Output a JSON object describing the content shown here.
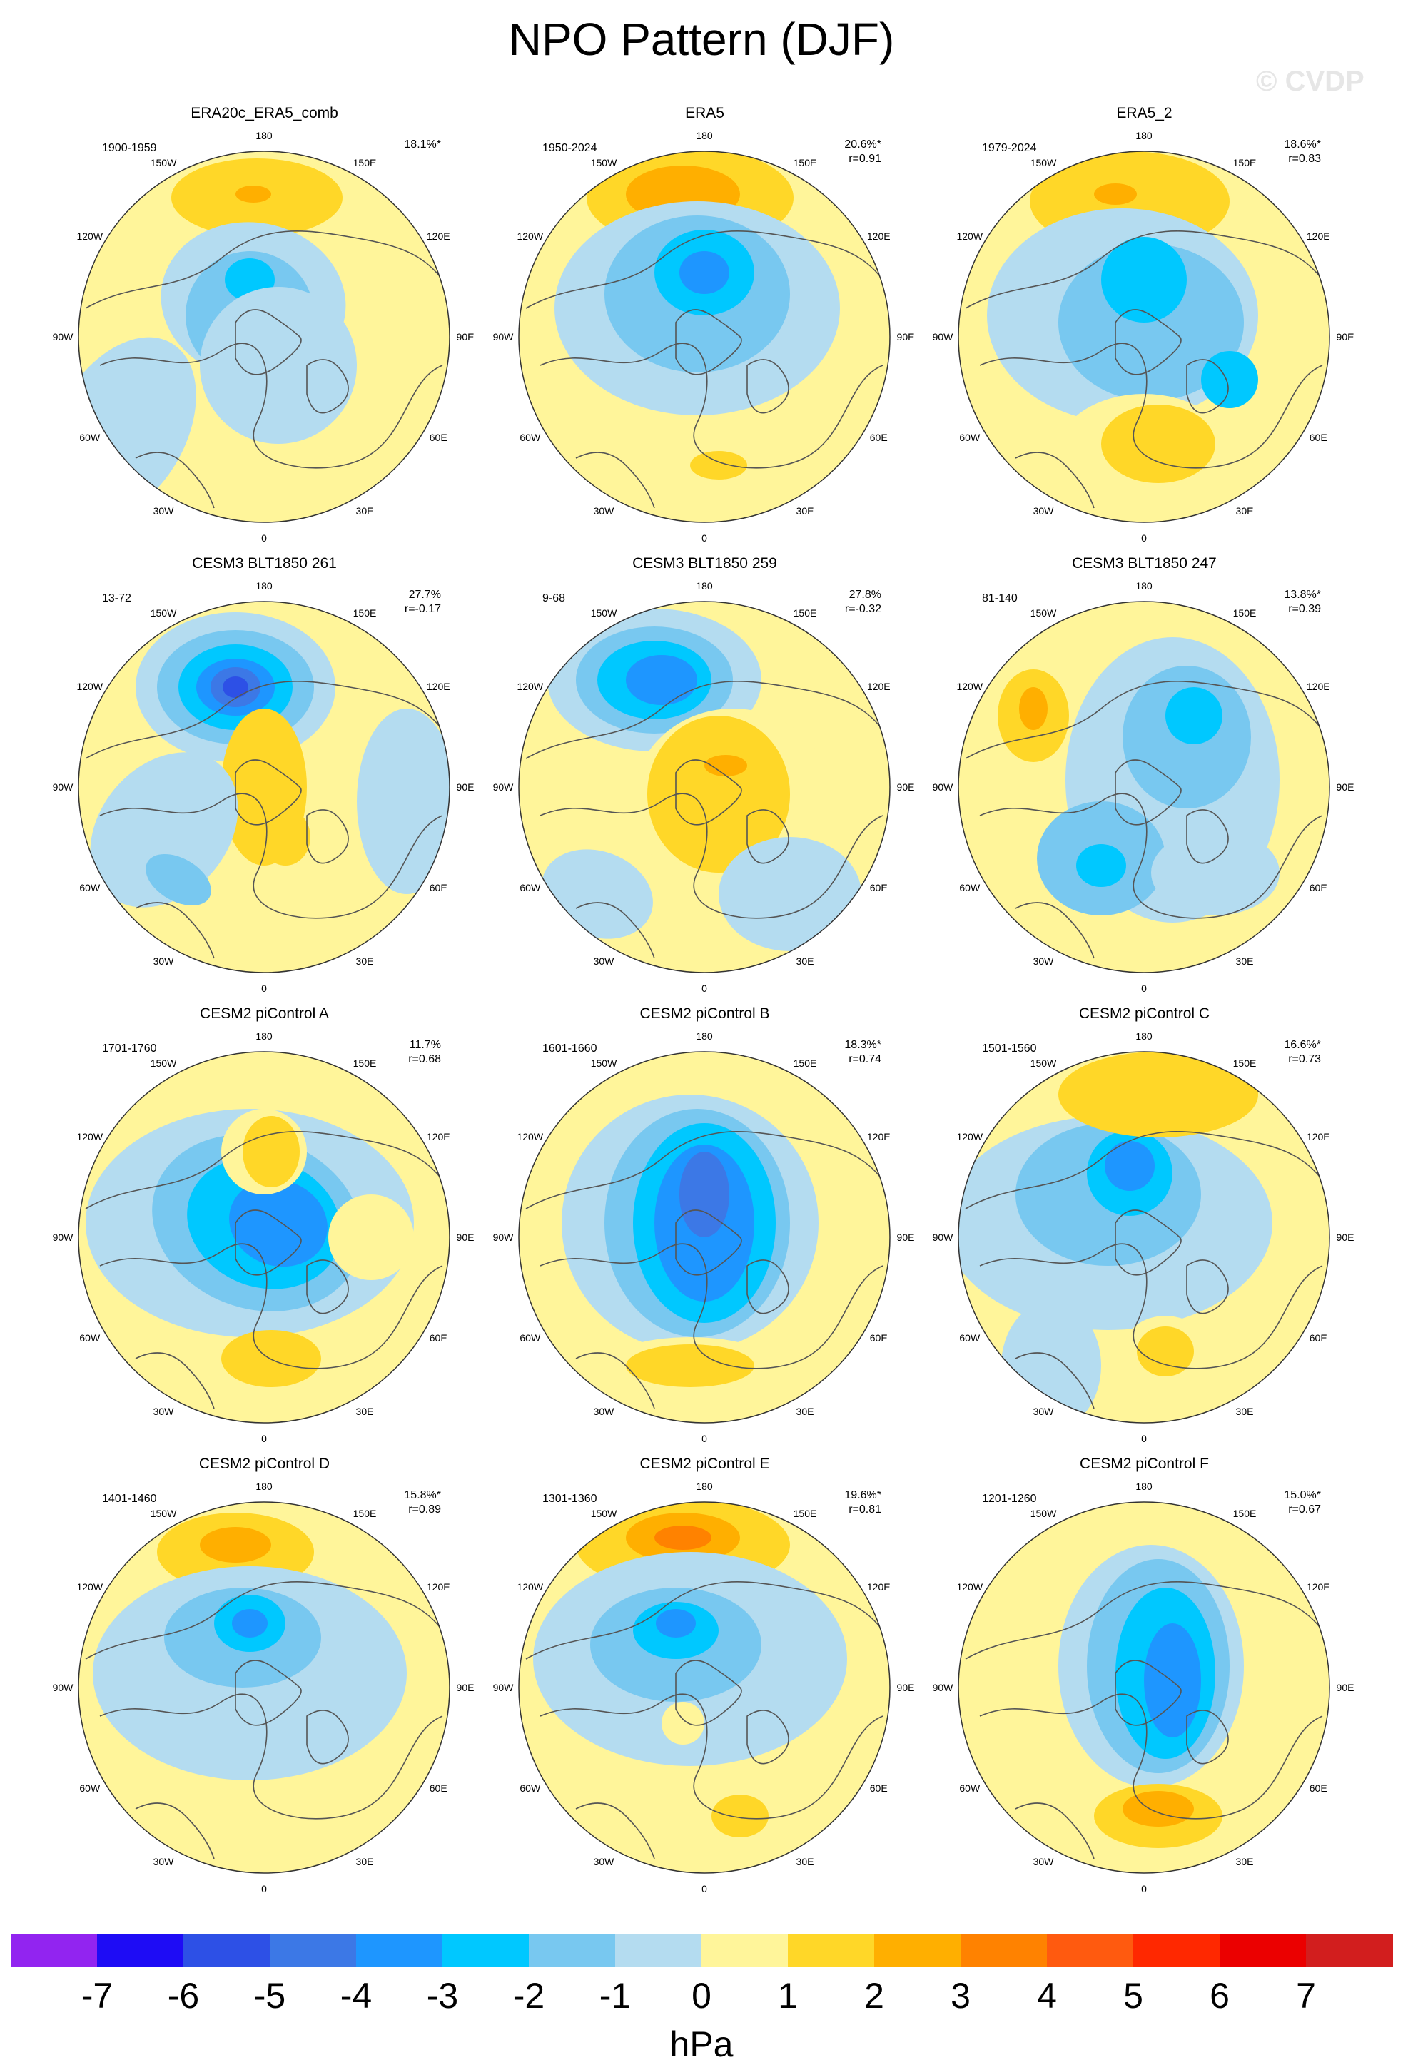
{
  "title": "NPO Pattern (DJF)",
  "watermark": "© CVDP",
  "lon_labels": [
    "180",
    "150E",
    "120E",
    "90E",
    "60E",
    "30E",
    "0",
    "30W",
    "60W",
    "90W",
    "120W",
    "150W"
  ],
  "colors": {
    "neg7": "#9224f0",
    "neg6": "#1e0cf5",
    "neg5": "#2d50e6",
    "neg4": "#3c78e6",
    "neg3": "#1e96ff",
    "neg2": "#00c8ff",
    "neg1": "#78c8f0",
    "neg0": "#b4dcf0",
    "pos0": "#fff59a",
    "pos1": "#ffd728",
    "pos2": "#ffaf00",
    "pos3": "#ff8200",
    "pos4": "#ff5a0f",
    "pos5": "#ff2800",
    "pos6": "#eb0000",
    "pos7": "#d21e1e",
    "pos8": "#ffb4b4"
  },
  "colorbar": {
    "labels": [
      "-7",
      "-6",
      "-5",
      "-4",
      "-3",
      "-2",
      "-1",
      "0",
      "1",
      "2",
      "3",
      "4",
      "5",
      "6",
      "7"
    ],
    "segments": [
      "neg7",
      "neg6",
      "neg5",
      "neg4",
      "neg3",
      "neg2",
      "neg1",
      "neg0",
      "pos0",
      "pos1",
      "pos2",
      "pos3",
      "pos4",
      "pos5",
      "pos6",
      "pos7"
    ],
    "units": "hPa"
  },
  "panels": [
    {
      "title": "ERA20c_ERA5_comb",
      "years": "1900-1959",
      "pct": "18.1%*",
      "r": ""
    },
    {
      "title": "ERA5",
      "years": "1950-2024",
      "pct": "20.6%*",
      "r": "r=0.91"
    },
    {
      "title": "ERA5_2",
      "years": "1979-2024",
      "pct": "18.6%*",
      "r": "r=0.83"
    },
    {
      "title": "CESM3 BLT1850 261",
      "years": "13-72",
      "pct": "27.7%",
      "r": "r=-0.17"
    },
    {
      "title": "CESM3 BLT1850 259",
      "years": "9-68",
      "pct": "27.8%",
      "r": "r=-0.32"
    },
    {
      "title": "CESM3 BLT1850 247",
      "years": "81-140",
      "pct": "13.8%*",
      "r": "r=0.39"
    },
    {
      "title": "CESM2 piControl A",
      "years": "1701-1760",
      "pct": "11.7%",
      "r": "r=0.68"
    },
    {
      "title": "CESM2 piControl B",
      "years": "1601-1660",
      "pct": "18.3%*",
      "r": "r=0.74"
    },
    {
      "title": "CESM2 piControl C",
      "years": "1501-1560",
      "pct": "16.6%*",
      "r": "r=0.73"
    },
    {
      "title": "CESM2 piControl D",
      "years": "1401-1460",
      "pct": "15.8%*",
      "r": "r=0.89"
    },
    {
      "title": "CESM2 piControl E",
      "years": "1301-1360",
      "pct": "19.6%*",
      "r": "r=0.81"
    },
    {
      "title": "CESM2 piControl F",
      "years": "1201-1260",
      "pct": "15.0%*",
      "r": "r=0.67"
    }
  ]
}
